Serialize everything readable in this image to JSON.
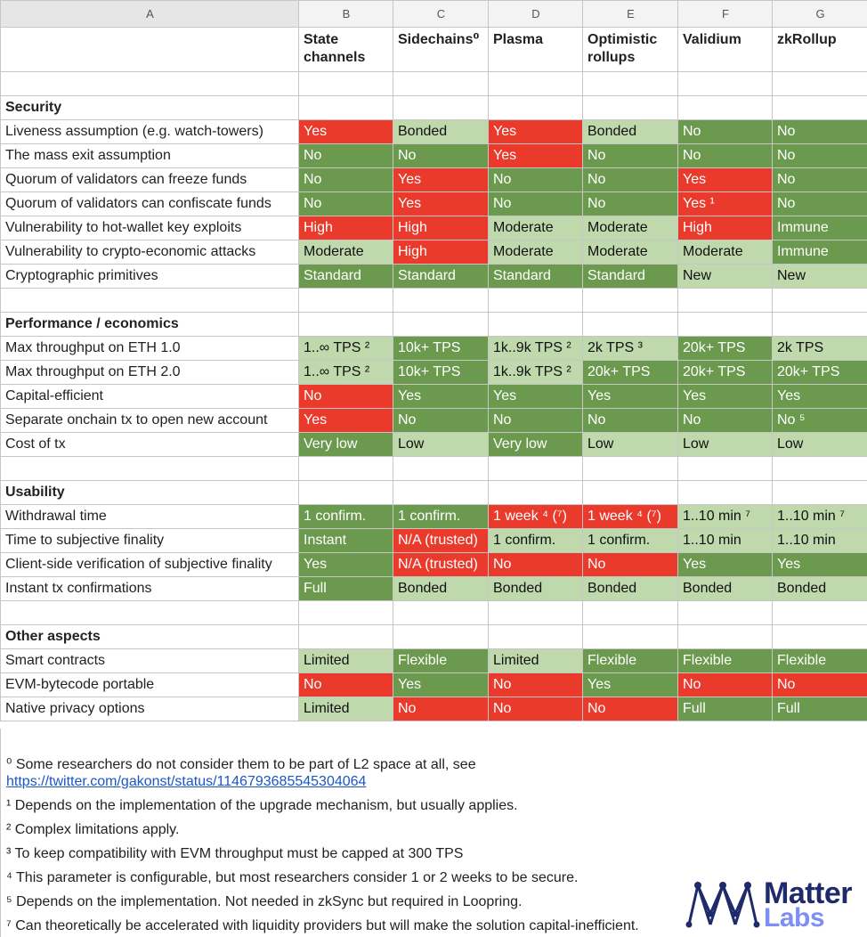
{
  "column_letters": [
    "A",
    "B",
    "C",
    "D",
    "E",
    "F",
    "G"
  ],
  "header": [
    "",
    "State channels",
    "Sidechains⁰",
    "Plasma",
    "Optimistic rollups",
    "Validium",
    "zkRollup"
  ],
  "rows": [
    {
      "type": "empty"
    },
    {
      "type": "section",
      "label": "Security"
    },
    {
      "type": "data",
      "label": "Liveness assumption (e.g. watch-towers)",
      "cells": [
        {
          "v": "Yes",
          "c": "r"
        },
        {
          "v": "Bonded",
          "c": "lg"
        },
        {
          "v": "Yes",
          "c": "r"
        },
        {
          "v": "Bonded",
          "c": "lg"
        },
        {
          "v": "No",
          "c": "dg"
        },
        {
          "v": "No",
          "c": "dg"
        }
      ]
    },
    {
      "type": "data",
      "label": "The mass exit assumption",
      "cells": [
        {
          "v": "No",
          "c": "dg"
        },
        {
          "v": "No",
          "c": "dg"
        },
        {
          "v": "Yes",
          "c": "r"
        },
        {
          "v": "No",
          "c": "dg"
        },
        {
          "v": "No",
          "c": "dg"
        },
        {
          "v": "No",
          "c": "dg"
        }
      ]
    },
    {
      "type": "data",
      "label": "Quorum of validators can freeze funds",
      "cells": [
        {
          "v": "No",
          "c": "dg"
        },
        {
          "v": "Yes",
          "c": "r"
        },
        {
          "v": "No",
          "c": "dg"
        },
        {
          "v": "No",
          "c": "dg"
        },
        {
          "v": "Yes",
          "c": "r"
        },
        {
          "v": "No",
          "c": "dg"
        }
      ]
    },
    {
      "type": "data",
      "label": "Quorum of validators can confiscate funds",
      "cells": [
        {
          "v": "No",
          "c": "dg"
        },
        {
          "v": "Yes",
          "c": "r"
        },
        {
          "v": "No",
          "c": "dg"
        },
        {
          "v": "No",
          "c": "dg"
        },
        {
          "v": "Yes ¹",
          "c": "r"
        },
        {
          "v": "No",
          "c": "dg"
        }
      ]
    },
    {
      "type": "data",
      "label": "Vulnerability to hot-wallet key exploits",
      "cells": [
        {
          "v": "High",
          "c": "r"
        },
        {
          "v": "High",
          "c": "r"
        },
        {
          "v": "Moderate",
          "c": "lg"
        },
        {
          "v": "Moderate",
          "c": "lg"
        },
        {
          "v": "High",
          "c": "r"
        },
        {
          "v": "Immune",
          "c": "dg"
        }
      ]
    },
    {
      "type": "data",
      "label": "Vulnerability to crypto-economic attacks",
      "cells": [
        {
          "v": "Moderate",
          "c": "lg"
        },
        {
          "v": "High",
          "c": "r"
        },
        {
          "v": "Moderate",
          "c": "lg"
        },
        {
          "v": "Moderate",
          "c": "lg"
        },
        {
          "v": "Moderate",
          "c": "lg"
        },
        {
          "v": "Immune",
          "c": "dg"
        }
      ]
    },
    {
      "type": "data",
      "label": "Cryptographic primitives",
      "cells": [
        {
          "v": "Standard",
          "c": "dg"
        },
        {
          "v": "Standard",
          "c": "dg"
        },
        {
          "v": "Standard",
          "c": "dg"
        },
        {
          "v": "Standard",
          "c": "dg"
        },
        {
          "v": "New",
          "c": "lg"
        },
        {
          "v": "New",
          "c": "lg"
        }
      ]
    },
    {
      "type": "empty"
    },
    {
      "type": "section",
      "label": "Performance / economics"
    },
    {
      "type": "data",
      "label": "Max throughput on ETH 1.0",
      "cells": [
        {
          "v": "1..∞ TPS ²",
          "c": "lg"
        },
        {
          "v": "10k+ TPS",
          "c": "dg"
        },
        {
          "v": "1k..9k TPS ²",
          "c": "lg"
        },
        {
          "v": "2k TPS ³",
          "c": "lg"
        },
        {
          "v": "20k+ TPS",
          "c": "dg"
        },
        {
          "v": "2k TPS",
          "c": "lg"
        }
      ]
    },
    {
      "type": "data",
      "label": "Max throughput on ETH 2.0",
      "cells": [
        {
          "v": "1..∞ TPS ²",
          "c": "lg"
        },
        {
          "v": "10k+ TPS",
          "c": "dg"
        },
        {
          "v": "1k..9k TPS ²",
          "c": "lg"
        },
        {
          "v": "20k+ TPS",
          "c": "dg"
        },
        {
          "v": "20k+ TPS",
          "c": "dg"
        },
        {
          "v": "20k+ TPS",
          "c": "dg"
        }
      ]
    },
    {
      "type": "data",
      "label": "Capital-efficient",
      "cells": [
        {
          "v": "No",
          "c": "r"
        },
        {
          "v": "Yes",
          "c": "dg"
        },
        {
          "v": "Yes",
          "c": "dg"
        },
        {
          "v": "Yes",
          "c": "dg"
        },
        {
          "v": "Yes",
          "c": "dg"
        },
        {
          "v": "Yes",
          "c": "dg"
        }
      ]
    },
    {
      "type": "data",
      "label": "Separate onchain tx to open new account",
      "cells": [
        {
          "v": "Yes",
          "c": "r"
        },
        {
          "v": "No",
          "c": "dg"
        },
        {
          "v": "No",
          "c": "dg"
        },
        {
          "v": "No",
          "c": "dg"
        },
        {
          "v": "No",
          "c": "dg"
        },
        {
          "v": "No ⁵",
          "c": "dg"
        }
      ]
    },
    {
      "type": "data",
      "label": "Cost of tx",
      "cells": [
        {
          "v": "Very low",
          "c": "dg"
        },
        {
          "v": "Low",
          "c": "lg"
        },
        {
          "v": "Very low",
          "c": "dg"
        },
        {
          "v": "Low",
          "c": "lg"
        },
        {
          "v": "Low",
          "c": "lg"
        },
        {
          "v": "Low",
          "c": "lg"
        }
      ]
    },
    {
      "type": "empty"
    },
    {
      "type": "section",
      "label": "Usability"
    },
    {
      "type": "data",
      "label": "Withdrawal time",
      "cells": [
        {
          "v": "1 confirm.",
          "c": "dg"
        },
        {
          "v": "1 confirm.",
          "c": "dg"
        },
        {
          "v": "1 week ⁴ (⁷)",
          "c": "r"
        },
        {
          "v": "1 week ⁴ (⁷)",
          "c": "r"
        },
        {
          "v": "1..10 min ⁷",
          "c": "lg"
        },
        {
          "v": "1..10 min ⁷",
          "c": "lg"
        }
      ]
    },
    {
      "type": "data",
      "label": "Time to subjective finality",
      "cells": [
        {
          "v": "Instant",
          "c": "dg"
        },
        {
          "v": "N/A (trusted)",
          "c": "r"
        },
        {
          "v": "1 confirm.",
          "c": "lg"
        },
        {
          "v": "1 confirm.",
          "c": "lg"
        },
        {
          "v": "1..10 min",
          "c": "lg"
        },
        {
          "v": "1..10 min",
          "c": "lg"
        }
      ]
    },
    {
      "type": "data",
      "label": "Client-side verification of subjective finality",
      "cells": [
        {
          "v": "Yes",
          "c": "dg"
        },
        {
          "v": "N/A (trusted)",
          "c": "r"
        },
        {
          "v": "No",
          "c": "r"
        },
        {
          "v": "No",
          "c": "r"
        },
        {
          "v": "Yes",
          "c": "dg"
        },
        {
          "v": "Yes",
          "c": "dg"
        }
      ]
    },
    {
      "type": "data",
      "label": "Instant tx confirmations",
      "cells": [
        {
          "v": "Full",
          "c": "dg"
        },
        {
          "v": "Bonded",
          "c": "lg"
        },
        {
          "v": "Bonded",
          "c": "lg"
        },
        {
          "v": "Bonded",
          "c": "lg"
        },
        {
          "v": "Bonded",
          "c": "lg"
        },
        {
          "v": "Bonded",
          "c": "lg"
        }
      ]
    },
    {
      "type": "empty"
    },
    {
      "type": "section",
      "label": "Other aspects"
    },
    {
      "type": "data",
      "label": "Smart contracts",
      "cells": [
        {
          "v": "Limited",
          "c": "lg"
        },
        {
          "v": "Flexible",
          "c": "dg"
        },
        {
          "v": "Limited",
          "c": "lg"
        },
        {
          "v": "Flexible",
          "c": "dg"
        },
        {
          "v": "Flexible",
          "c": "dg"
        },
        {
          "v": "Flexible",
          "c": "dg"
        }
      ]
    },
    {
      "type": "data",
      "label": "EVM-bytecode portable",
      "cells": [
        {
          "v": "No",
          "c": "r"
        },
        {
          "v": "Yes",
          "c": "dg"
        },
        {
          "v": "No",
          "c": "r"
        },
        {
          "v": "Yes",
          "c": "dg"
        },
        {
          "v": "No",
          "c": "r"
        },
        {
          "v": "No",
          "c": "r"
        }
      ]
    },
    {
      "type": "data",
      "label": "Native privacy options",
      "cells": [
        {
          "v": "Limited",
          "c": "lg"
        },
        {
          "v": "No",
          "c": "r"
        },
        {
          "v": "No",
          "c": "r"
        },
        {
          "v": "No",
          "c": "r"
        },
        {
          "v": "Full",
          "c": "dg"
        },
        {
          "v": "Full",
          "c": "dg"
        }
      ]
    }
  ],
  "footnotes": {
    "f0": "⁰ Some researchers do not consider them to be part of L2 space at all, see",
    "f0_link": "https://twitter.com/gakonst/status/1146793685545304064",
    "f1": "¹ Depends on the implementation of the upgrade mechanism, but usually applies.",
    "f2": "² Complex limitations apply.",
    "f3": "³ To keep compatibility with EVM throughput must be capped at 300 TPS",
    "f4": "⁴ This parameter is configurable, but most researchers consider 1 or 2 weeks to be secure.",
    "f5": "⁵ Depends on the implementation. Not needed in zkSync but required in Loopring.",
    "f7": "⁷ Can theoretically be accelerated with liquidity providers but will make the solution capital-inefficient."
  },
  "logo": {
    "line1": "Matter",
    "line2": "Labs",
    "color_dark": "#1f2a6b",
    "color_light": "#7d8ef5"
  },
  "colors": {
    "red": "#ea3a2c",
    "dark_green": "#6b9a4f",
    "light_green": "#bfd9ad"
  }
}
